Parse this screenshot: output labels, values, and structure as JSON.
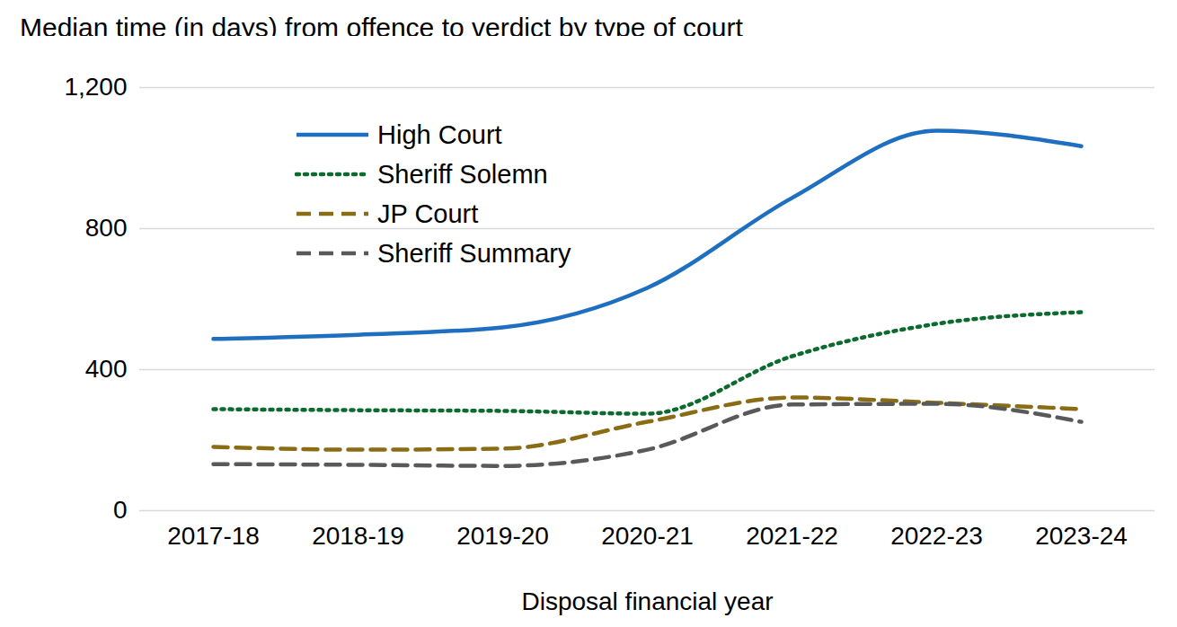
{
  "chart_data": {
    "type": "line",
    "title": "Median time (in days) from offence to verdict by type of court",
    "x_label": "Disposal financial year",
    "categories": [
      "2017-18",
      "2018-19",
      "2019-20",
      "2020-21",
      "2021-22",
      "2022-23",
      "2023-24"
    ],
    "series": [
      {
        "name": "High Court",
        "color": "#1F6FC1",
        "line_style": "solid",
        "values": [
          487,
          499,
          520,
          632,
          887,
          1078,
          1034
        ]
      },
      {
        "name": "Sheriff Solemn",
        "color": "#0B6B2E",
        "line_style": "dotted",
        "values": [
          288,
          285,
          283,
          275,
          438,
          530,
          563
        ]
      },
      {
        "name": "JP Court",
        "color": "#8A6C14",
        "line_style": "dashed",
        "values": [
          181,
          173,
          176,
          252,
          321,
          306,
          288
        ]
      },
      {
        "name": "Sheriff Summary",
        "color": "#595959",
        "line_style": "dashed",
        "values": [
          132,
          130,
          127,
          173,
          301,
          303,
          252
        ]
      }
    ],
    "ylim": [
      0,
      1200
    ],
    "yticks": [
      0,
      400,
      800,
      {
        "value": 1200,
        "label": "1,200"
      }
    ],
    "grid": true,
    "legend": "top-left"
  }
}
